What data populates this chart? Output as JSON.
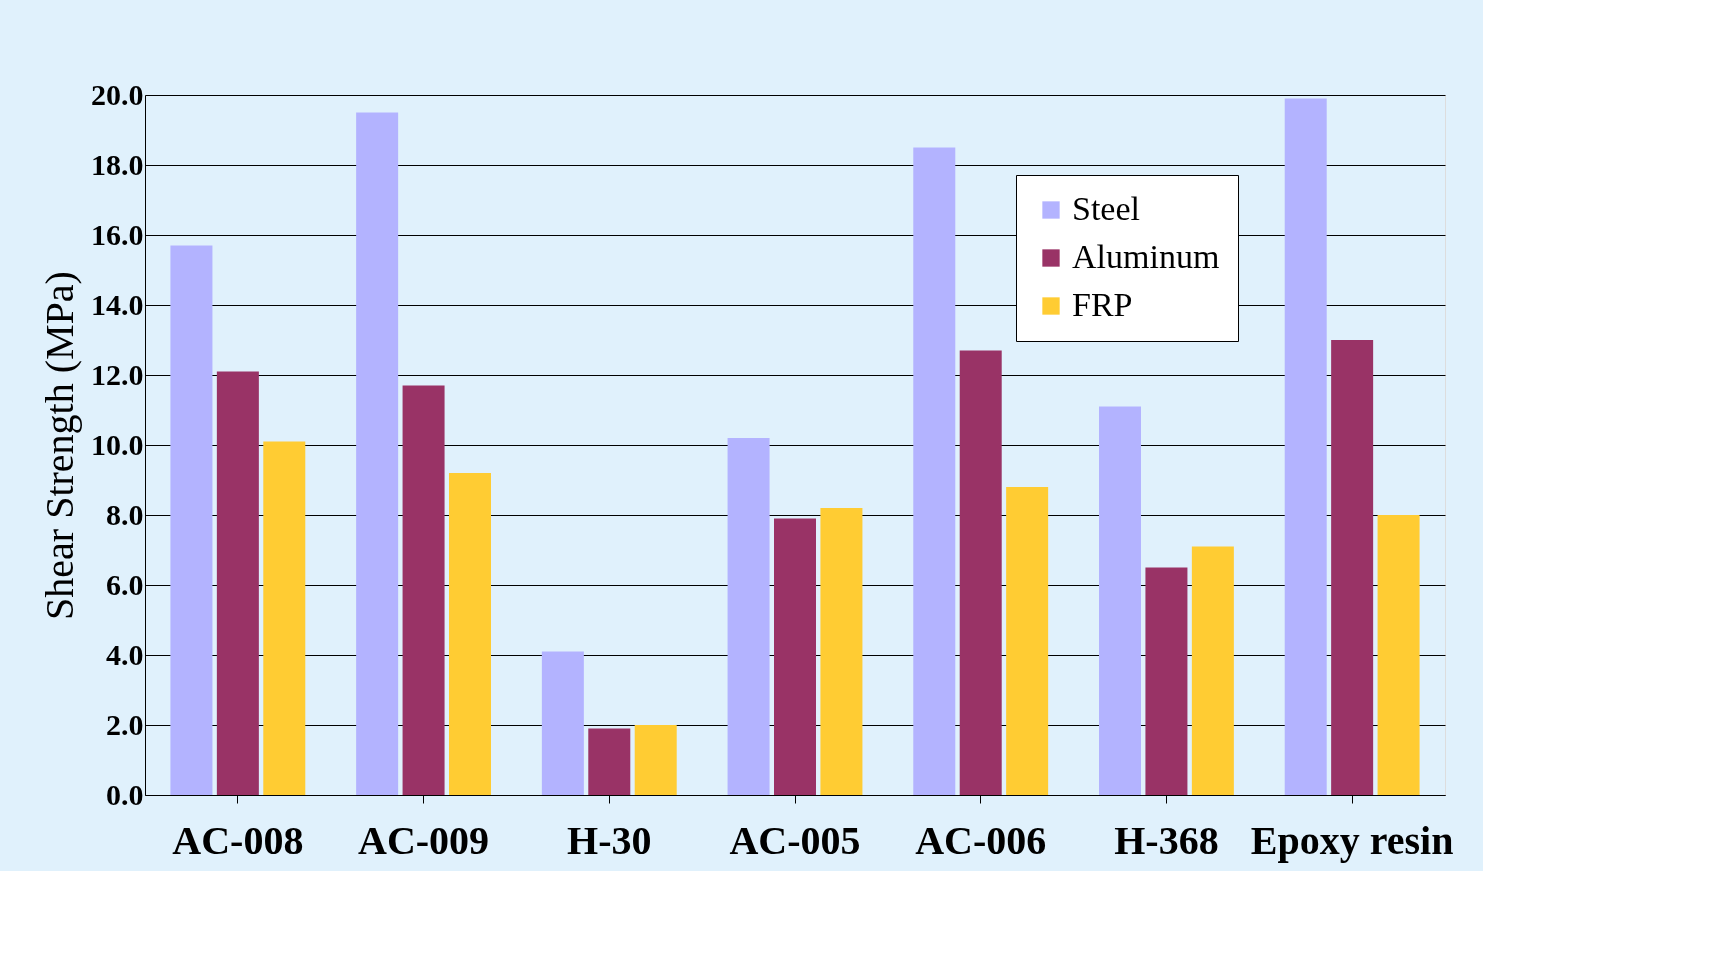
{
  "chart_data": {
    "type": "bar",
    "ylabel": "Shear Strength (MPa)",
    "categories": [
      "AC-008",
      "AC-009",
      "H-30",
      "AC-005",
      "AC-006",
      "H-368",
      "Epoxy resin"
    ],
    "series": [
      {
        "name": "Steel",
        "color": "#b3b3ff",
        "values": [
          15.7,
          19.5,
          4.1,
          10.2,
          18.5,
          11.1,
          19.9
        ]
      },
      {
        "name": "Aluminum",
        "color": "#993366",
        "values": [
          12.1,
          11.7,
          1.9,
          7.9,
          12.7,
          6.5,
          13.0
        ]
      },
      {
        "name": "FRP",
        "color": "#ffcc33",
        "values": [
          10.1,
          9.2,
          2.0,
          8.2,
          8.8,
          7.1,
          8.0
        ]
      }
    ],
    "ylim": [
      0,
      20
    ],
    "yticks": [
      {
        "value": 0,
        "label": "0.0"
      },
      {
        "value": 2,
        "label": "2.0"
      },
      {
        "value": 4,
        "label": "4.0"
      },
      {
        "value": 6,
        "label": "6.0"
      },
      {
        "value": 8,
        "label": "8.0"
      },
      {
        "value": 10,
        "label": "10.0"
      },
      {
        "value": 12,
        "label": "12.0"
      },
      {
        "value": 14,
        "label": "14.0"
      },
      {
        "value": 16,
        "label": "16.0"
      },
      {
        "value": 18,
        "label": "18.0"
      },
      {
        "value": 20,
        "label": "20.0"
      }
    ],
    "grid": "y",
    "legend": "top right"
  }
}
